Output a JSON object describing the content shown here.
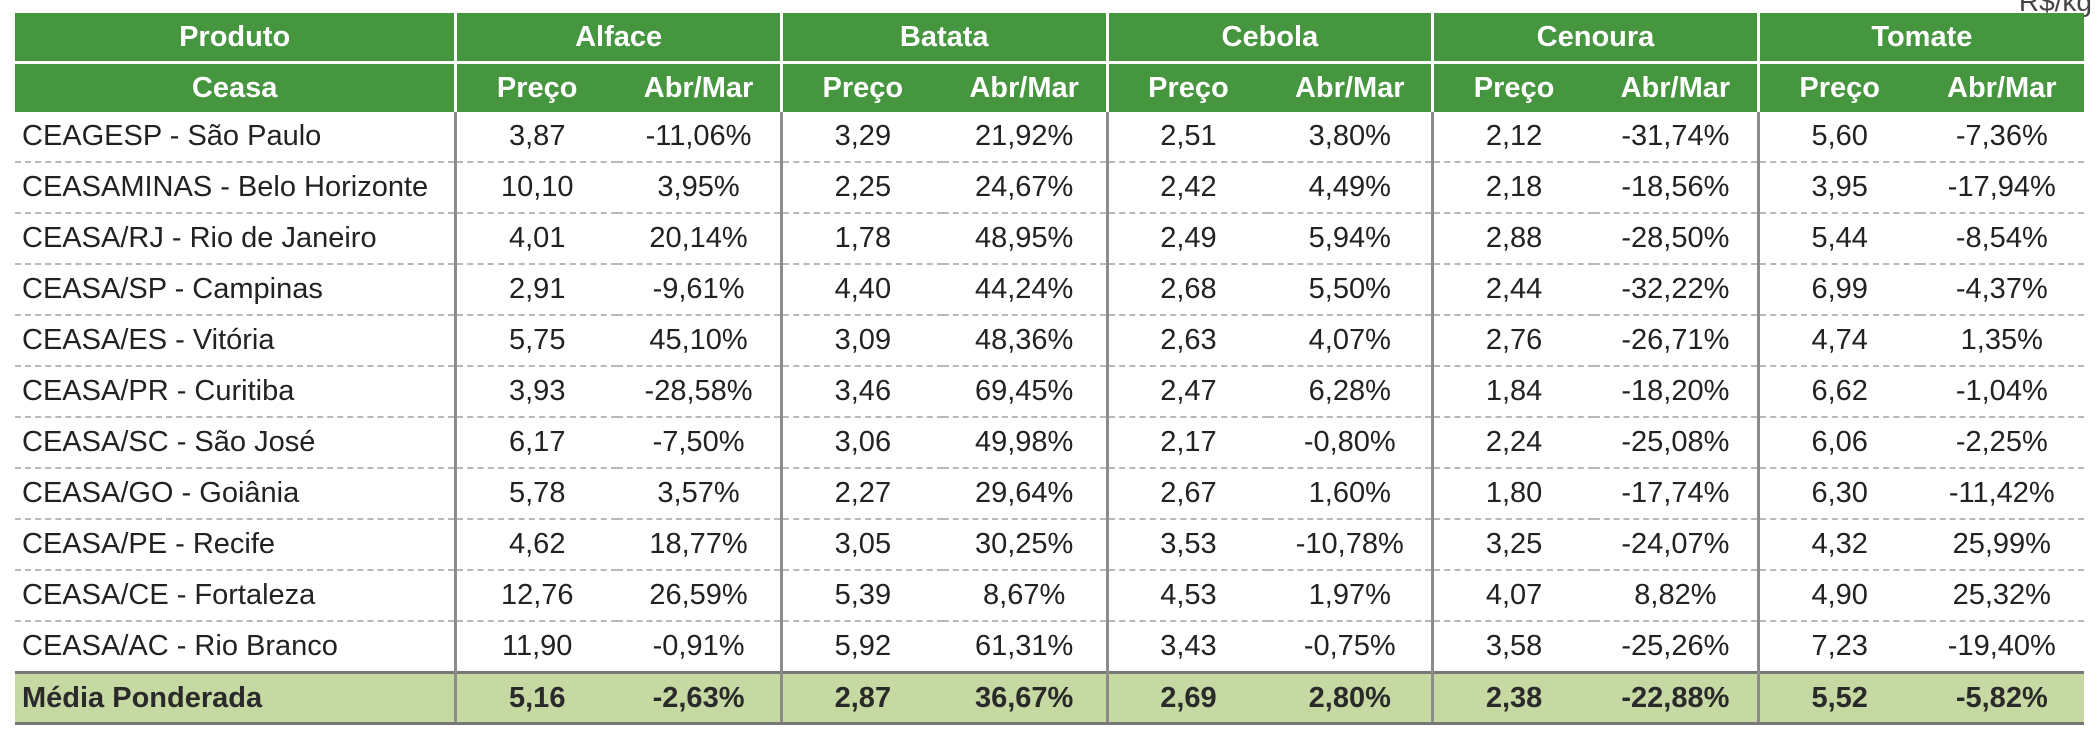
{
  "unit_label": "R$/kg",
  "header": {
    "produto_label": "Produto",
    "ceasa_label": "Ceasa",
    "preco_label": "Preço",
    "var_label": "Abr/Mar",
    "products": [
      "Alface",
      "Batata",
      "Cebola",
      "Cenoura",
      "Tomate"
    ]
  },
  "rows": [
    {
      "name": "CEAGESP - São Paulo",
      "cells": [
        "3,87",
        "-11,06%",
        "3,29",
        "21,92%",
        "2,51",
        "3,80%",
        "2,12",
        "-31,74%",
        "5,60",
        "-7,36%"
      ]
    },
    {
      "name": "CEASAMINAS - Belo Horizonte",
      "cells": [
        "10,10",
        "3,95%",
        "2,25",
        "24,67%",
        "2,42",
        "4,49%",
        "2,18",
        "-18,56%",
        "3,95",
        "-17,94%"
      ]
    },
    {
      "name": "CEASA/RJ - Rio de Janeiro",
      "cells": [
        "4,01",
        "20,14%",
        "1,78",
        "48,95%",
        "2,49",
        "5,94%",
        "2,88",
        "-28,50%",
        "5,44",
        "-8,54%"
      ]
    },
    {
      "name": "CEASA/SP - Campinas",
      "cells": [
        "2,91",
        "-9,61%",
        "4,40",
        "44,24%",
        "2,68",
        "5,50%",
        "2,44",
        "-32,22%",
        "6,99",
        "-4,37%"
      ]
    },
    {
      "name": "CEASA/ES - Vitória",
      "cells": [
        "5,75",
        "45,10%",
        "3,09",
        "48,36%",
        "2,63",
        "4,07%",
        "2,76",
        "-26,71%",
        "4,74",
        "1,35%"
      ]
    },
    {
      "name": "CEASA/PR - Curitiba",
      "cells": [
        "3,93",
        "-28,58%",
        "3,46",
        "69,45%",
        "2,47",
        "6,28%",
        "1,84",
        "-18,20%",
        "6,62",
        "-1,04%"
      ]
    },
    {
      "name": "CEASA/SC - São José",
      "cells": [
        "6,17",
        "-7,50%",
        "3,06",
        "49,98%",
        "2,17",
        "-0,80%",
        "2,24",
        "-25,08%",
        "6,06",
        "-2,25%"
      ]
    },
    {
      "name": "CEASA/GO - Goiânia",
      "cells": [
        "5,78",
        "3,57%",
        "2,27",
        "29,64%",
        "2,67",
        "1,60%",
        "1,80",
        "-17,74%",
        "6,30",
        "-11,42%"
      ]
    },
    {
      "name": "CEASA/PE - Recife",
      "cells": [
        "4,62",
        "18,77%",
        "3,05",
        "30,25%",
        "3,53",
        "-10,78%",
        "3,25",
        "-24,07%",
        "4,32",
        "25,99%"
      ]
    },
    {
      "name": "CEASA/CE - Fortaleza",
      "cells": [
        "12,76",
        "26,59%",
        "5,39",
        "8,67%",
        "4,53",
        "1,97%",
        "4,07",
        "8,82%",
        "4,90",
        "25,32%"
      ]
    },
    {
      "name": "CEASA/AC - Rio Branco",
      "cells": [
        "11,90",
        "-0,91%",
        "5,92",
        "61,31%",
        "3,43",
        "-0,75%",
        "3,58",
        "-25,26%",
        "7,23",
        "-19,40%"
      ]
    }
  ],
  "average": {
    "name": "Média Ponderada",
    "cells": [
      "5,16",
      "-2,63%",
      "2,87",
      "36,67%",
      "2,69",
      "2,80%",
      "2,38",
      "-22,88%",
      "5,52",
      "-5,82%"
    ]
  },
  "colors": {
    "header_bg": "#46953f",
    "header_text": "#ffffff",
    "average_bg": "#c6d9a3"
  }
}
